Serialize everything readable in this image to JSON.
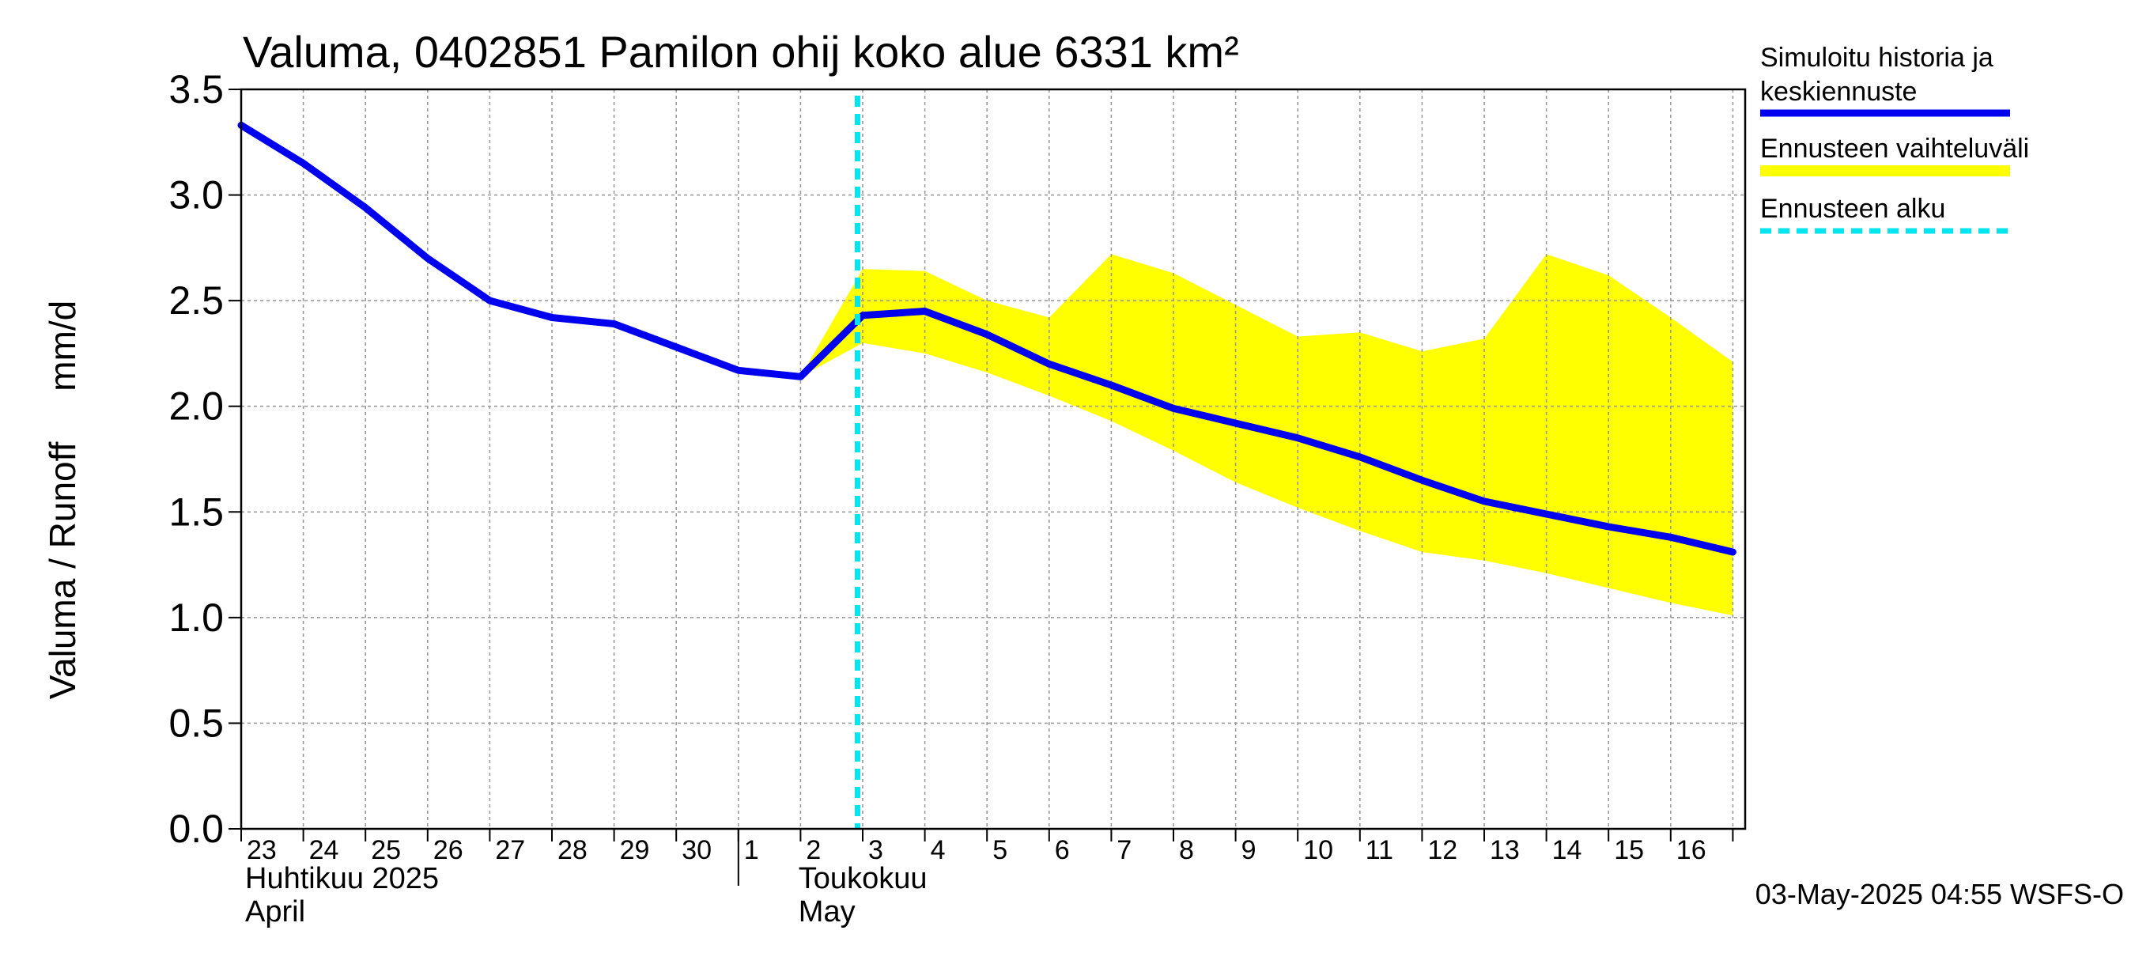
{
  "chart_data": {
    "type": "line",
    "title": "Valuma, 0402851 Pamilon ohij koko alue 6331 km²",
    "ylabel": "Valuma / Runoff     mm/d",
    "xlabel": "",
    "ylim": [
      0,
      3.5
    ],
    "yticks": [
      "0.0",
      "0.5",
      "1.0",
      "1.5",
      "2.0",
      "2.5",
      "3.0",
      "3.5"
    ],
    "x_dates": [
      "2025-04-23",
      "2025-04-24",
      "2025-04-25",
      "2025-04-26",
      "2025-04-27",
      "2025-04-28",
      "2025-04-29",
      "2025-04-30",
      "2025-05-01",
      "2025-05-02",
      "2025-05-03",
      "2025-05-04",
      "2025-05-05",
      "2025-05-06",
      "2025-05-07",
      "2025-05-08",
      "2025-05-09",
      "2025-05-10",
      "2025-05-11",
      "2025-05-12",
      "2025-05-13",
      "2025-05-14",
      "2025-05-15",
      "2025-05-16",
      "2025-05-17"
    ],
    "day_labels": [
      "23",
      "24",
      "25",
      "26",
      "27",
      "28",
      "29",
      "30",
      "1",
      "2",
      "3",
      "4",
      "5",
      "6",
      "7",
      "8",
      "9",
      "10",
      "11",
      "12",
      "13",
      "14",
      "15",
      "16"
    ],
    "month_labels": [
      {
        "fi": "Huhtikuu  2025",
        "en": "April"
      },
      {
        "fi": "Toukokuu",
        "en": "May"
      }
    ],
    "series": [
      {
        "name": "Simuloitu historia ja keskiennuste",
        "color": "#0000ee",
        "values": [
          3.33,
          3.15,
          2.94,
          2.7,
          2.5,
          2.42,
          2.39,
          2.28,
          2.17,
          2.14,
          2.43,
          2.45,
          2.34,
          2.2,
          2.1,
          1.99,
          1.92,
          1.85,
          1.76,
          1.65,
          1.55,
          1.49,
          1.43,
          1.38,
          1.31
        ]
      }
    ],
    "band": {
      "name": "Ennusteen vaihteluväli",
      "color": "#ffff00",
      "upper": [
        null,
        null,
        null,
        null,
        null,
        null,
        null,
        null,
        null,
        2.14,
        2.65,
        2.64,
        2.5,
        2.42,
        2.72,
        2.63,
        2.48,
        2.33,
        2.35,
        2.26,
        2.32,
        2.72,
        2.62,
        2.42,
        2.21
      ],
      "lower": [
        null,
        null,
        null,
        null,
        null,
        null,
        null,
        null,
        null,
        2.14,
        2.3,
        2.25,
        2.16,
        2.05,
        1.93,
        1.79,
        1.64,
        1.52,
        1.41,
        1.31,
        1.27,
        1.21,
        1.14,
        1.07,
        1.01
      ]
    },
    "forecast_start": {
      "name": "Ennusteen alku",
      "date": "2025-05-02 22:00",
      "color": "#00e5ee"
    },
    "legend": {
      "position": "right",
      "entries": [
        {
          "lines": [
            "Simuloitu historia ja",
            "keskiennuste"
          ],
          "style": "line",
          "color": "#0000ee"
        },
        {
          "lines": [
            "Ennusteen vaihteluväli"
          ],
          "style": "band",
          "color": "#ffff00"
        },
        {
          "lines": [
            "Ennusteen alku"
          ],
          "style": "dashed",
          "color": "#00e5ee"
        }
      ]
    },
    "grid": true,
    "footer": "03-May-2025 04:55 WSFS-O"
  }
}
